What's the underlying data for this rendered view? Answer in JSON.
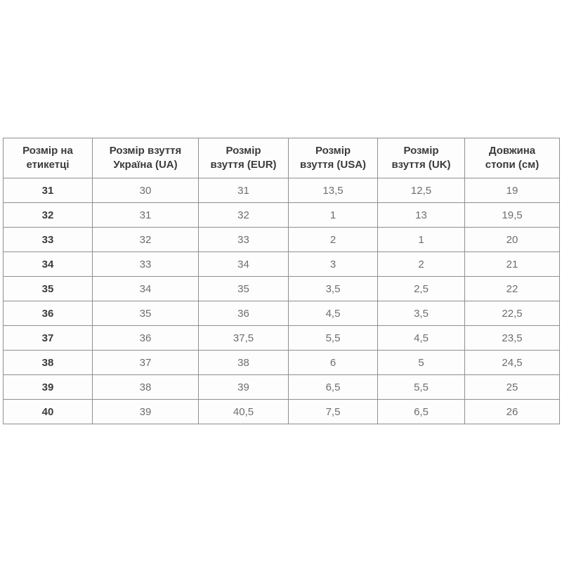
{
  "colors": {
    "border": "#8f8f8f",
    "header_text": "#3b3b3b",
    "label_column_text": "#3b3b3b",
    "cell_text": "#6e6e6e",
    "row_background": "#fdfdfd",
    "page_background": "#ffffff"
  },
  "chart_data": {
    "type": "table",
    "title": "",
    "columns": [
      "Розмір на\nетикетці",
      "Розмір взуття\nУкраїна (UA)",
      "Розмір\nвзуття (EUR)",
      "Розмір\nвзуття (USA)",
      "Розмір\nвзуття (UK)",
      "Довжина\nстопи (см)"
    ],
    "rows": [
      [
        "31",
        "30",
        "31",
        "13,5",
        "12,5",
        "19"
      ],
      [
        "32",
        "31",
        "32",
        "1",
        "13",
        "19,5"
      ],
      [
        "33",
        "32",
        "33",
        "2",
        "1",
        "20"
      ],
      [
        "34",
        "33",
        "34",
        "3",
        "2",
        "21"
      ],
      [
        "35",
        "34",
        "35",
        "3,5",
        "2,5",
        "22"
      ],
      [
        "36",
        "35",
        "36",
        "4,5",
        "3,5",
        "22,5"
      ],
      [
        "37",
        "36",
        "37,5",
        "5,5",
        "4,5",
        "23,5"
      ],
      [
        "38",
        "37",
        "38",
        "6",
        "5",
        "24,5"
      ],
      [
        "39",
        "38",
        "39",
        "6,5",
        "5,5",
        "25"
      ],
      [
        "40",
        "39",
        "40,5",
        "7,5",
        "6,5",
        "26"
      ]
    ]
  }
}
